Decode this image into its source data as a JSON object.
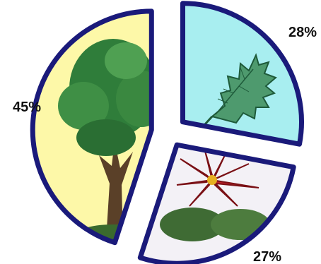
{
  "chart_data": {
    "type": "pie",
    "exploded": true,
    "slices": [
      {
        "value": 28,
        "label": "28%",
        "picture": "oak-leaf",
        "fill": "#a8eef0"
      },
      {
        "value": 27,
        "label": "27%",
        "picture": "poinsettia-flower",
        "fill": "#f3f1f6"
      },
      {
        "value": 45,
        "label": "45%",
        "picture": "tree",
        "fill": "#fdf8a8"
      }
    ],
    "outline_color": "#1a1a7a"
  }
}
